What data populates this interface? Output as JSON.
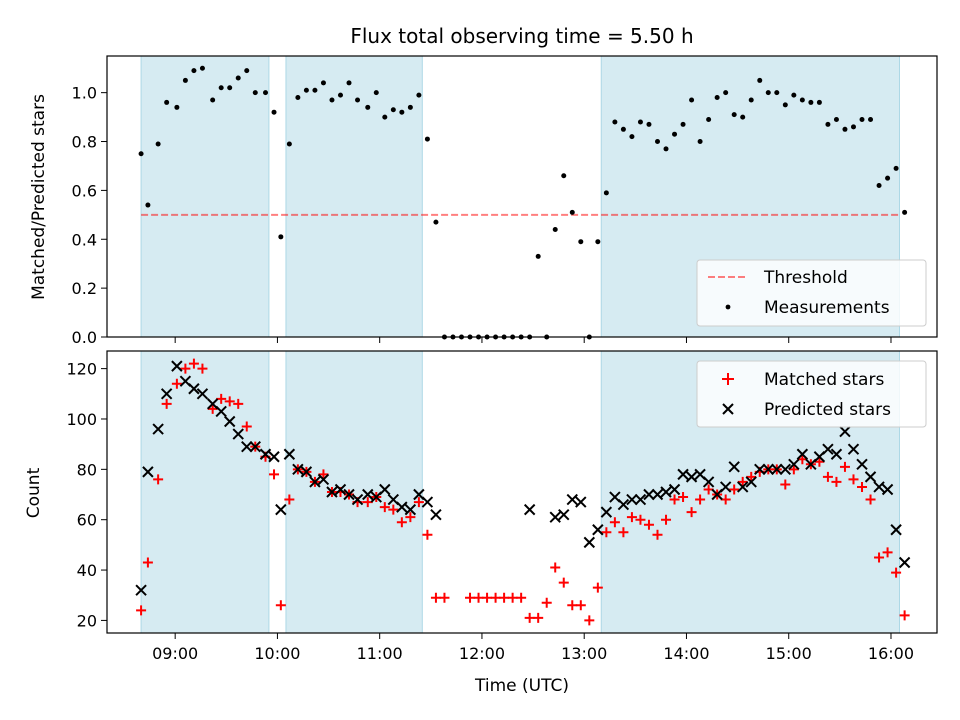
{
  "title": "Flux total observing time = 5.50 h",
  "colors": {
    "band": "#add8e6",
    "threshold": "#ff0000",
    "matched": "#ff0000",
    "predicted": "#000000",
    "measurement": "#000000"
  },
  "chart_data": [
    {
      "type": "scatter",
      "panel": "top",
      "ylabel": "Matched/Predicted stars",
      "xlabel": "",
      "xlim": [
        "08:20",
        "16:27"
      ],
      "ylim": [
        0,
        1.15
      ],
      "yticks": [
        "0.0",
        "0.2",
        "0.4",
        "0.6",
        "0.8",
        "1.0"
      ],
      "ytick_values": [
        0,
        0.2,
        0.4,
        0.6,
        0.8,
        1.0
      ],
      "xtick_values": [
        "09:00",
        "10:00",
        "11:00",
        "12:00",
        "13:00",
        "14:00",
        "15:00",
        "16:00"
      ],
      "observing_windows": [
        [
          "08:40",
          "09:55"
        ],
        [
          "10:05",
          "11:25"
        ],
        [
          "13:10",
          "16:05"
        ]
      ],
      "threshold": {
        "name": "Threshold",
        "value": 0.5,
        "x": [
          "08:40",
          "16:05"
        ],
        "style": "dashed"
      },
      "legend": {
        "position": "lower-right",
        "entries": [
          "Threshold",
          "Measurements"
        ]
      },
      "series": [
        {
          "name": "Measurements",
          "x": [
            "08:40",
            "08:44",
            "08:50",
            "08:55",
            "09:01",
            "09:06",
            "09:11",
            "09:16",
            "09:22",
            "09:27",
            "09:32",
            "09:37",
            "09:42",
            "09:47",
            "09:53",
            "09:58",
            "10:02",
            "10:07",
            "10:12",
            "10:17",
            "10:22",
            "10:27",
            "10:32",
            "10:37",
            "10:42",
            "10:47",
            "10:53",
            "10:58",
            "11:03",
            "11:08",
            "11:13",
            "11:18",
            "11:23",
            "11:28",
            "11:33",
            "11:38",
            "11:43",
            "11:48",
            "11:53",
            "11:58",
            "12:03",
            "12:08",
            "12:13",
            "12:18",
            "12:23",
            "12:28",
            "12:33",
            "12:38",
            "12:43",
            "12:48",
            "12:53",
            "12:58",
            "13:03",
            "13:08",
            "13:13",
            "13:18",
            "13:23",
            "13:28",
            "13:33",
            "13:38",
            "13:43",
            "13:48",
            "13:53",
            "13:58",
            "14:03",
            "14:08",
            "14:13",
            "14:18",
            "14:23",
            "14:28",
            "14:33",
            "14:38",
            "14:43",
            "14:48",
            "14:53",
            "14:58",
            "15:03",
            "15:08",
            "15:13",
            "15:18",
            "15:23",
            "15:28",
            "15:33",
            "15:38",
            "15:43",
            "15:48",
            "15:53",
            "15:58",
            "16:03",
            "16:08"
          ],
          "y": [
            0.75,
            0.54,
            0.79,
            0.96,
            0.94,
            1.05,
            1.09,
            1.1,
            0.97,
            1.02,
            1.02,
            1.06,
            1.09,
            1.0,
            1.0,
            0.92,
            0.41,
            0.79,
            0.98,
            1.01,
            1.01,
            1.04,
            0.97,
            0.99,
            1.04,
            0.97,
            0.94,
            1.0,
            0.9,
            0.93,
            0.92,
            0.94,
            0.99,
            0.81,
            0.47,
            0.0,
            0.0,
            0.0,
            0.0,
            0.0,
            0.0,
            0.0,
            0.0,
            0.0,
            0.0,
            0.0,
            0.33,
            0.0,
            0.44,
            0.66,
            0.51,
            0.39,
            0.0,
            0.39,
            0.59,
            0.88,
            0.85,
            0.82,
            0.88,
            0.87,
            0.8,
            0.77,
            0.83,
            0.87,
            0.97,
            0.8,
            0.89,
            0.98,
            1.0,
            0.91,
            0.9,
            0.97,
            1.05,
            1.0,
            1.0,
            0.95,
            0.99,
            0.97,
            0.96,
            0.96,
            0.87,
            0.89,
            0.85,
            0.86,
            0.89,
            0.89,
            0.62,
            0.65,
            0.69,
            0.51
          ]
        }
      ]
    },
    {
      "type": "scatter",
      "panel": "bottom",
      "ylabel": "Count",
      "xlabel": "Time (UTC)",
      "xlim": [
        "08:20",
        "16:27"
      ],
      "ylim": [
        15,
        127
      ],
      "yticks": [
        "20",
        "40",
        "60",
        "80",
        "100",
        "120"
      ],
      "ytick_values": [
        20,
        40,
        60,
        80,
        100,
        120
      ],
      "xticks": [
        "09:00",
        "10:00",
        "11:00",
        "12:00",
        "13:00",
        "14:00",
        "15:00",
        "16:00"
      ],
      "xtick_values": [
        "09:00",
        "10:00",
        "11:00",
        "12:00",
        "13:00",
        "14:00",
        "15:00",
        "16:00"
      ],
      "observing_windows": [
        [
          "08:40",
          "09:55"
        ],
        [
          "10:05",
          "11:25"
        ],
        [
          "13:10",
          "16:05"
        ]
      ],
      "legend": {
        "position": "top-right",
        "entries": [
          "Matched stars",
          "Predicted stars"
        ]
      },
      "series": [
        {
          "name": "Matched stars",
          "marker": "+",
          "x": [
            "08:40",
            "08:44",
            "08:50",
            "08:55",
            "09:01",
            "09:06",
            "09:11",
            "09:16",
            "09:22",
            "09:27",
            "09:32",
            "09:37",
            "09:42",
            "09:47",
            "09:53",
            "09:58",
            "10:02",
            "10:07",
            "10:12",
            "10:17",
            "10:22",
            "10:27",
            "10:32",
            "10:37",
            "10:42",
            "10:47",
            "10:53",
            "10:58",
            "11:03",
            "11:08",
            "11:13",
            "11:18",
            "11:23",
            "11:28",
            "11:33",
            "11:38",
            "11:53",
            "11:58",
            "12:03",
            "12:08",
            "12:13",
            "12:18",
            "12:23",
            "12:28",
            "12:33",
            "12:38",
            "12:43",
            "12:48",
            "12:53",
            "12:58",
            "13:03",
            "13:08",
            "13:13",
            "13:18",
            "13:23",
            "13:28",
            "13:33",
            "13:38",
            "13:43",
            "13:48",
            "13:53",
            "13:58",
            "14:03",
            "14:08",
            "14:13",
            "14:18",
            "14:23",
            "14:28",
            "14:33",
            "14:38",
            "14:43",
            "14:48",
            "14:53",
            "14:58",
            "15:03",
            "15:08",
            "15:13",
            "15:18",
            "15:23",
            "15:28",
            "15:33",
            "15:38",
            "15:43",
            "15:48",
            "15:53",
            "15:58",
            "16:03",
            "16:08"
          ],
          "y": [
            24,
            43,
            76,
            106,
            114,
            120,
            122,
            120,
            104,
            108,
            107,
            106,
            97,
            89,
            85,
            78,
            26,
            68,
            80,
            79,
            75,
            78,
            71,
            71,
            70,
            67,
            67,
            69,
            65,
            64,
            59,
            61,
            67,
            54,
            29,
            29,
            29,
            29,
            29,
            29,
            29,
            29,
            29,
            21,
            21,
            27,
            41,
            35,
            26,
            26,
            20,
            33,
            55,
            59,
            55,
            61,
            60,
            58,
            54,
            60,
            68,
            69,
            63,
            68,
            72,
            70,
            68,
            72,
            75,
            77,
            79,
            80,
            80,
            74,
            80,
            84,
            82,
            83,
            77,
            75,
            81,
            76,
            73,
            68,
            45,
            47,
            39,
            22
          ]
        },
        {
          "name": "Predicted stars",
          "marker": "x",
          "x": [
            "08:40",
            "08:44",
            "08:50",
            "08:55",
            "09:01",
            "09:06",
            "09:11",
            "09:16",
            "09:22",
            "09:27",
            "09:32",
            "09:37",
            "09:42",
            "09:47",
            "09:53",
            "09:58",
            "10:02",
            "10:07",
            "10:12",
            "10:17",
            "10:22",
            "10:27",
            "10:32",
            "10:37",
            "10:42",
            "10:47",
            "10:53",
            "10:58",
            "11:03",
            "11:08",
            "11:13",
            "11:18",
            "11:23",
            "11:28",
            "11:33",
            "12:28",
            "12:43",
            "12:48",
            "12:53",
            "12:58",
            "13:03",
            "13:08",
            "13:13",
            "13:18",
            "13:23",
            "13:28",
            "13:33",
            "13:38",
            "13:43",
            "13:48",
            "13:53",
            "13:58",
            "14:03",
            "14:08",
            "14:13",
            "14:18",
            "14:23",
            "14:28",
            "14:33",
            "14:38",
            "14:43",
            "14:48",
            "14:53",
            "14:58",
            "15:03",
            "15:08",
            "15:13",
            "15:18",
            "15:23",
            "15:28",
            "15:33",
            "15:38",
            "15:43",
            "15:48",
            "15:53",
            "15:58",
            "16:03",
            "16:08"
          ],
          "y": [
            32,
            79,
            96,
            110,
            121,
            115,
            112,
            110,
            106,
            103,
            99,
            94,
            89,
            89,
            86,
            85,
            64,
            86,
            80,
            79,
            75,
            76,
            71,
            72,
            70,
            68,
            70,
            69,
            72,
            68,
            65,
            64,
            70,
            67,
            62,
            64,
            61,
            62,
            68,
            67,
            51,
            56,
            63,
            69,
            66,
            68,
            68,
            70,
            70,
            71,
            72,
            78,
            77,
            78,
            75,
            70,
            73,
            81,
            73,
            75,
            80,
            80,
            80,
            80,
            82,
            86,
            82,
            85,
            88,
            86,
            95,
            88,
            82,
            77,
            73,
            72,
            56,
            43
          ]
        }
      ]
    }
  ]
}
